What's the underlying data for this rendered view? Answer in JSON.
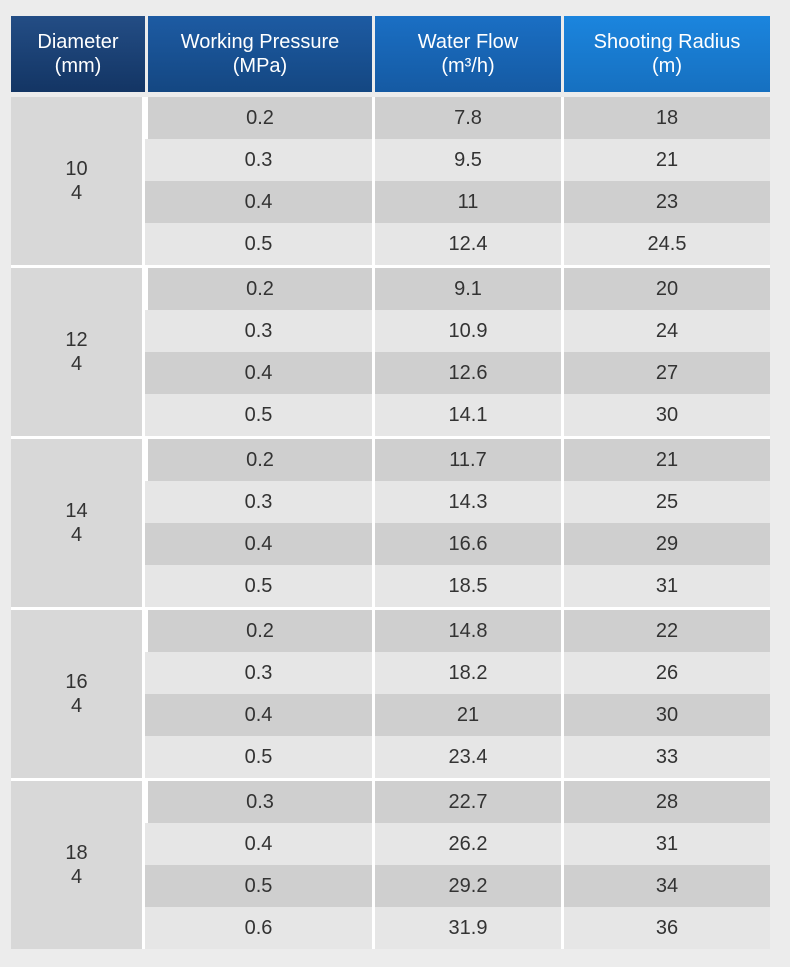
{
  "headers": {
    "diameter": [
      "Diameter",
      "(mm)"
    ],
    "pressure": [
      "Working Pressure",
      "(MPa)"
    ],
    "flow": [
      "Water Flow",
      "(m³/h)"
    ],
    "radius": [
      "Shooting Radius",
      "(m)"
    ]
  },
  "groups": [
    {
      "diameter": "10",
      "sub": "4",
      "rows": [
        {
          "pressure": "0.2",
          "flow": "7.8",
          "radius": "18"
        },
        {
          "pressure": "0.3",
          "flow": "9.5",
          "radius": "21"
        },
        {
          "pressure": "0.4",
          "flow": "11",
          "radius": "23"
        },
        {
          "pressure": "0.5",
          "flow": "12.4",
          "radius": "24.5"
        }
      ]
    },
    {
      "diameter": "12",
      "sub": "4",
      "rows": [
        {
          "pressure": "0.2",
          "flow": "9.1",
          "radius": "20"
        },
        {
          "pressure": "0.3",
          "flow": "10.9",
          "radius": "24"
        },
        {
          "pressure": "0.4",
          "flow": "12.6",
          "radius": "27"
        },
        {
          "pressure": "0.5",
          "flow": "14.1",
          "radius": "30"
        }
      ]
    },
    {
      "diameter": "14",
      "sub": "4",
      "rows": [
        {
          "pressure": "0.2",
          "flow": "11.7",
          "radius": "21"
        },
        {
          "pressure": "0.3",
          "flow": "14.3",
          "radius": "25"
        },
        {
          "pressure": "0.4",
          "flow": "16.6",
          "radius": "29"
        },
        {
          "pressure": "0.5",
          "flow": "18.5",
          "radius": "31"
        }
      ]
    },
    {
      "diameter": "16",
      "sub": "4",
      "rows": [
        {
          "pressure": "0.2",
          "flow": "14.8",
          "radius": "22"
        },
        {
          "pressure": "0.3",
          "flow": "18.2",
          "radius": "26"
        },
        {
          "pressure": "0.4",
          "flow": "21",
          "radius": "30"
        },
        {
          "pressure": "0.5",
          "flow": "23.4",
          "radius": "33"
        }
      ]
    },
    {
      "diameter": "18",
      "sub": "4",
      "rows": [
        {
          "pressure": "0.3",
          "flow": "22.7",
          "radius": "28"
        },
        {
          "pressure": "0.4",
          "flow": "26.2",
          "radius": "31"
        },
        {
          "pressure": "0.5",
          "flow": "29.2",
          "radius": "34"
        },
        {
          "pressure": "0.6",
          "flow": "31.9",
          "radius": "36"
        }
      ]
    }
  ]
}
